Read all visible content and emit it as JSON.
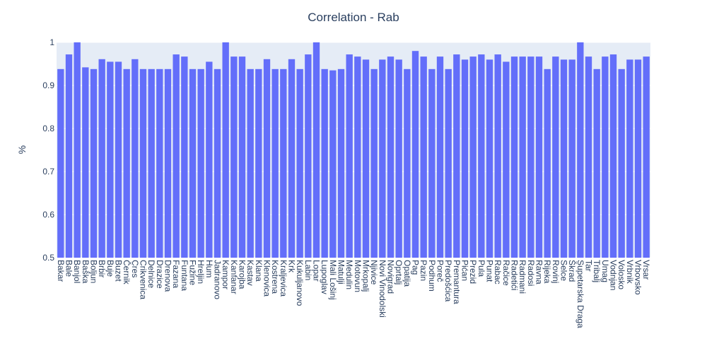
{
  "chart_data": {
    "type": "bar",
    "title": "Correlation - Rab",
    "xlabel": "",
    "ylabel": "%",
    "ylim": [
      0.5,
      1.0
    ],
    "yticks": [
      "0.5",
      "0.6",
      "0.7",
      "0.8",
      "0.9",
      "1"
    ],
    "grid": true,
    "bar_color": "#636efa",
    "plot_bg": "#e5ecf6",
    "categories": [
      "Bakar",
      "Bale",
      "Banjol",
      "Baška",
      "Boljun",
      "Brbir",
      "Buje",
      "Buzet",
      "Černik",
      "Cres",
      "Crikvenica",
      "Delnice",
      "Drazice",
      "Drenova",
      "Fazana",
      "Funtana",
      "Fužine",
      "Hreljin",
      "Hum",
      "Jadranovo",
      "Kampor",
      "Kanfanar",
      "Karojba",
      "Kastav",
      "Klana",
      "Klenovica",
      "Kostrena",
      "Kraljevica",
      "Krk",
      "Kukuljanovo",
      "Labin",
      "Lopar",
      "Lupoglav",
      "Mali Lošinj",
      "Matulji",
      "Medulin",
      "Motovun",
      "Mrkopalj",
      "Njivice",
      "Novi Vinodolski",
      "Novigrad",
      "Oprtalj",
      "Opatija",
      "Pag",
      "Pazin",
      "Podhum",
      "Poreč",
      "Predošćica",
      "Premantura",
      "Pićan",
      "Prezid",
      "Pula",
      "Punat",
      "Rabac",
      "Račice",
      "Radetići",
      "Radmani",
      "Radosi",
      "Ravna",
      "Rijeka",
      "Rovinj",
      "Selce",
      "Škrad",
      "Supetarska Draga",
      "Tar",
      "Tribalj",
      "Umag",
      "Vodnjan",
      "Volosko",
      "Vrbnik",
      "Vrbovsko",
      "Vrsar"
    ],
    "values": [
      0.938,
      0.972,
      1.0,
      0.942,
      0.938,
      0.961,
      0.955,
      0.955,
      0.938,
      0.961,
      0.938,
      0.938,
      0.938,
      0.938,
      0.972,
      0.967,
      0.938,
      0.938,
      0.955,
      0.938,
      1.0,
      0.967,
      0.967,
      0.938,
      0.938,
      0.961,
      0.938,
      0.938,
      0.961,
      0.938,
      0.972,
      1.0,
      0.938,
      0.935,
      0.938,
      0.972,
      0.967,
      0.96,
      0.938,
      0.96,
      0.967,
      0.96,
      0.938,
      0.98,
      0.967,
      0.938,
      0.967,
      0.938,
      0.972,
      0.96,
      0.967,
      0.972,
      0.96,
      0.972,
      0.955,
      0.967,
      0.967,
      0.967,
      0.967,
      0.938,
      0.967,
      0.96,
      0.96,
      1.0,
      0.967,
      0.938,
      0.967,
      0.972,
      0.938,
      0.96,
      0.96,
      0.967
    ]
  }
}
